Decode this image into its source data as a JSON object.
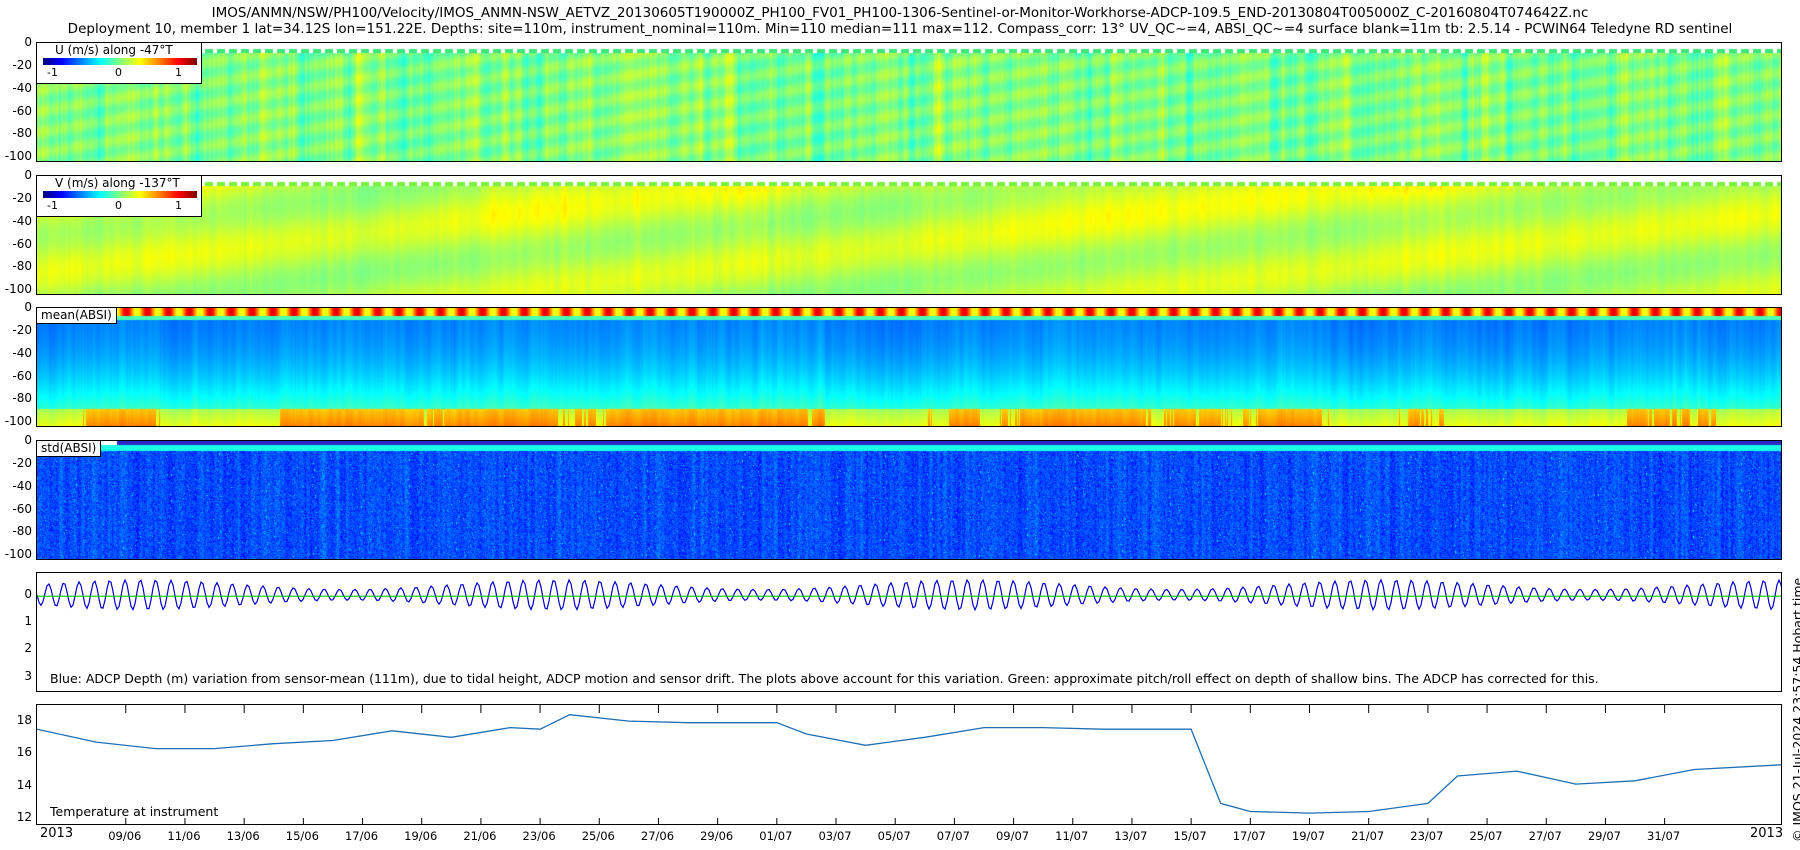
{
  "title_line1": "IMOS/ANMN/NSW/PH100/Velocity/IMOS_ANMN-NSW_AETVZ_20130605T190000Z_PH100_FV01_PH100-1306-Sentinel-or-Monitor-Workhorse-ADCP-109.5_END-20130804T005000Z_C-20160804T074642Z.nc",
  "title_line2": "Deployment 10, member 1 lat=34.12S lon=151.22E. Depths: site=110m, instrument_nominal=110m. Min=110 median=111 max=112. Compass_corr: 13° UV_QC~=4, ABSI_QC~=4 surface blank=11m tb: 2.5.14 - PCWIN64 Teledyne RD sentinel",
  "stamp": "© IMOS 21-Jul-2024 23:57:54 Hobart time",
  "colors": {
    "line_blue": "#0000c8",
    "line_green": "#00c800",
    "temp_line": "#1f6fb4"
  },
  "chart_data": [
    {
      "type": "heatmap",
      "label": "U (m/s) along -47°T",
      "colorbar_ticks": [
        "-1",
        "0",
        "1"
      ],
      "clim": [
        -1.3,
        1.3
      ],
      "yticks": [
        "0",
        "-20",
        "-40",
        "-60",
        "-80",
        "-100"
      ],
      "ylim": [
        -105,
        0
      ],
      "colormap": "jet",
      "typical_value": 0.0
    },
    {
      "type": "heatmap",
      "label": "V (m/s) along -137°T",
      "colorbar_ticks": [
        "-1",
        "0",
        "1"
      ],
      "clim": [
        -1.3,
        1.3
      ],
      "yticks": [
        "0",
        "-20",
        "-40",
        "-60",
        "-80",
        "-100"
      ],
      "ylim": [
        -105,
        0
      ],
      "colormap": "jet",
      "typical_value": 0.45
    },
    {
      "type": "heatmap",
      "label": "mean(ABSI)",
      "yticks": [
        "0",
        "-20",
        "-40",
        "-60",
        "-80",
        "-100"
      ],
      "ylim": [
        -105,
        0
      ],
      "colormap": "jet"
    },
    {
      "type": "heatmap",
      "label": "std(ABSI)",
      "yticks": [
        "0",
        "-20",
        "-40",
        "-60",
        "-80",
        "-100"
      ],
      "ylim": [
        -105,
        0
      ],
      "colormap": "jet"
    },
    {
      "type": "line",
      "yticks": [
        "0",
        "1",
        "2",
        "3"
      ],
      "ylim": [
        -0.8,
        3.6
      ],
      "y_reversed": true,
      "annotation": "Blue: ADCP Depth (m) variation from sensor-mean (111m), due to tidal height, ADCP motion and sensor drift. The plots above account for this variation. Green: approximate pitch/roll effect on depth of shallow bins. The ADCP has corrected for this.",
      "series": [
        {
          "color": "line_blue",
          "tidal_period_days": 0.5175,
          "amplitude_m": 0.5
        },
        {
          "color": "line_green",
          "value_m": 0.05
        }
      ]
    },
    {
      "type": "line",
      "annotation": "Temperature at instrument",
      "yticks": [
        "12",
        "14",
        "16",
        "18"
      ],
      "ylim": [
        11.5,
        19
      ],
      "x_start": "2013-06-06",
      "x_end": "2013-08-04",
      "x": [
        "2013-06-06",
        "2013-06-08",
        "2013-06-10",
        "2013-06-12",
        "2013-06-14",
        "2013-06-16",
        "2013-06-18",
        "2013-06-20",
        "2013-06-22",
        "2013-06-23",
        "2013-06-24",
        "2013-06-26",
        "2013-06-28",
        "2013-07-01",
        "2013-07-02",
        "2013-07-04",
        "2013-07-06",
        "2013-07-08",
        "2013-07-10",
        "2013-07-12",
        "2013-07-14",
        "2013-07-15",
        "2013-07-16",
        "2013-07-17",
        "2013-07-19",
        "2013-07-21",
        "2013-07-23",
        "2013-07-24",
        "2013-07-26",
        "2013-07-28",
        "2013-07-30",
        "2013-08-01",
        "2013-08-04"
      ],
      "y": [
        17.5,
        16.7,
        16.3,
        16.3,
        16.6,
        16.8,
        17.4,
        17.0,
        17.6,
        17.5,
        18.4,
        18.0,
        17.9,
        17.9,
        17.2,
        16.5,
        17.0,
        17.6,
        17.6,
        17.5,
        17.5,
        17.5,
        12.9,
        12.4,
        12.3,
        12.4,
        12.9,
        14.6,
        14.9,
        14.1,
        14.3,
        15.0,
        15.3
      ],
      "xtick_labels": [
        "09/06",
        "11/06",
        "13/06",
        "15/06",
        "17/06",
        "19/06",
        "21/06",
        "23/06",
        "25/06",
        "27/06",
        "29/06",
        "01/07",
        "03/07",
        "05/07",
        "07/07",
        "09/07",
        "11/07",
        "13/07",
        "15/07",
        "17/07",
        "19/07",
        "21/07",
        "23/07",
        "25/07",
        "27/07",
        "29/07",
        "31/07"
      ],
      "xtick_dates": [
        "2013-06-09",
        "2013-06-11",
        "2013-06-13",
        "2013-06-15",
        "2013-06-17",
        "2013-06-19",
        "2013-06-21",
        "2013-06-23",
        "2013-06-25",
        "2013-06-27",
        "2013-06-29",
        "2013-07-01",
        "2013-07-03",
        "2013-07-05",
        "2013-07-07",
        "2013-07-09",
        "2013-07-11",
        "2013-07-13",
        "2013-07-15",
        "2013-07-17",
        "2013-07-19",
        "2013-07-21",
        "2013-07-23",
        "2013-07-25",
        "2013-07-27",
        "2013-07-29",
        "2013-07-31"
      ],
      "year_left": "2013",
      "year_right": "2013"
    }
  ]
}
